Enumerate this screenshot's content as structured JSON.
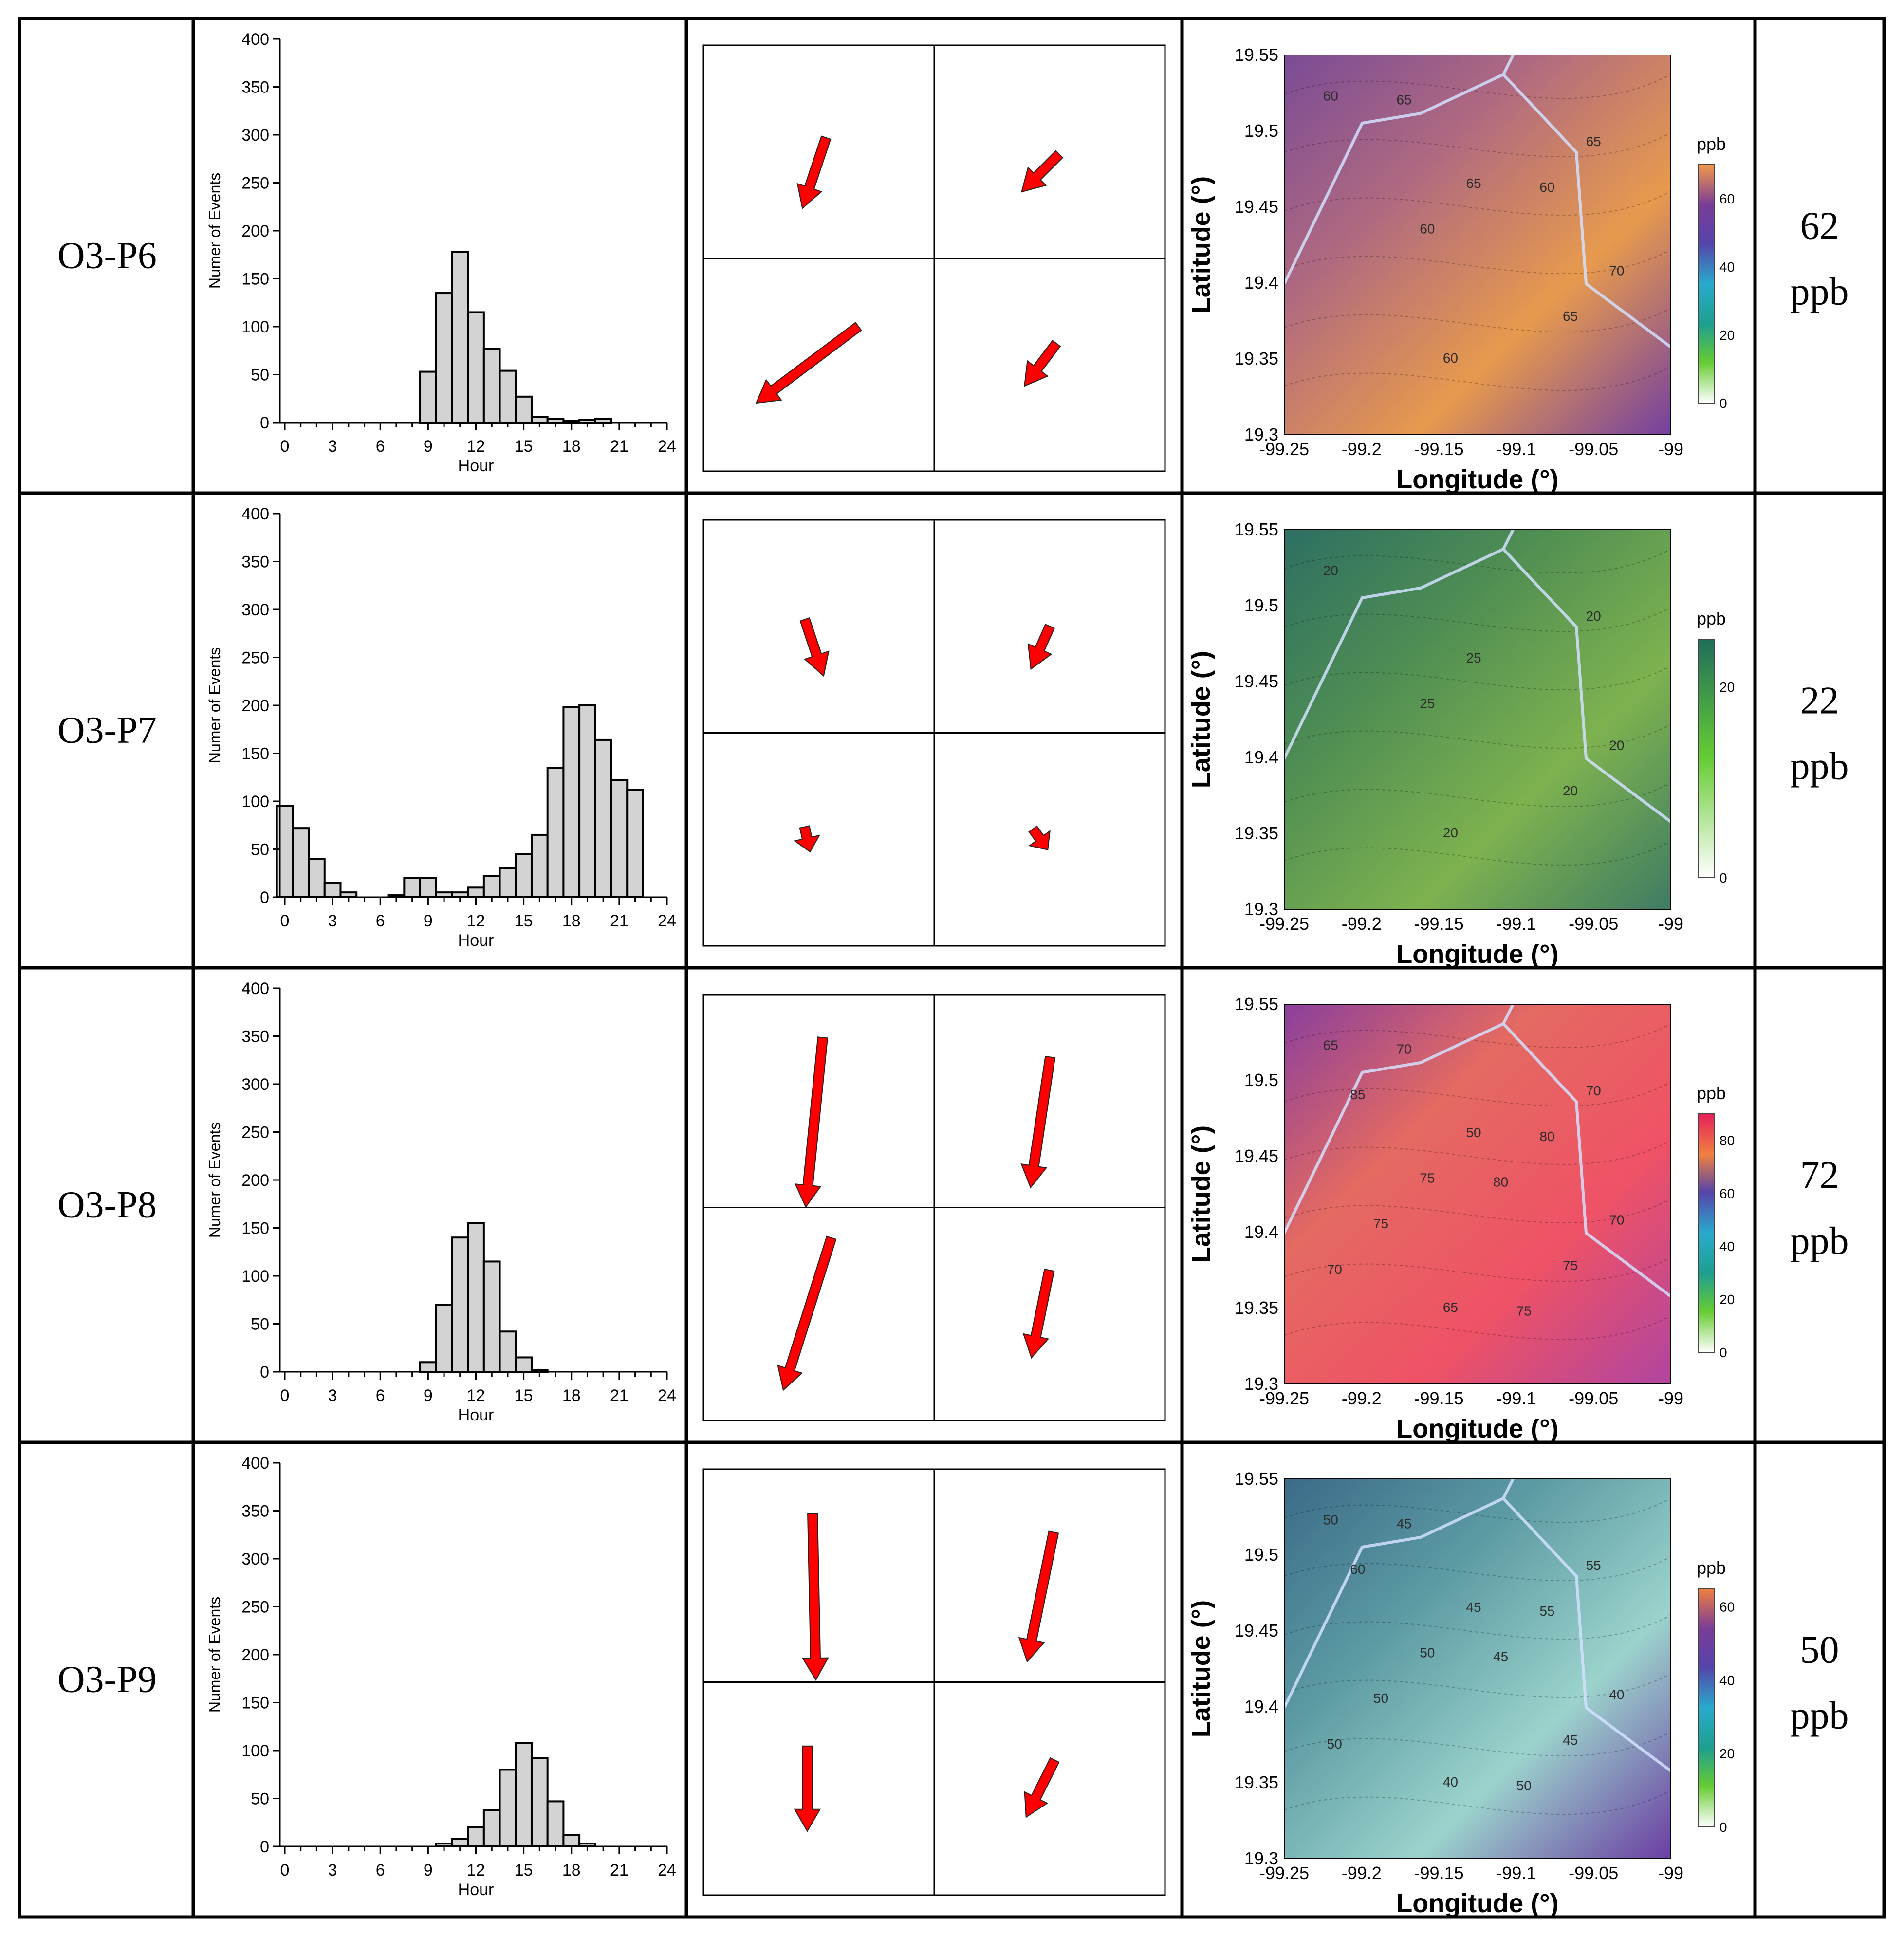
{
  "figure": {
    "type": "table-of-charts",
    "colors": {
      "bar_fill": "#d3d3d3",
      "arrow": "#ff0000",
      "grid": "#000000"
    }
  },
  "histogram_axes": {
    "ylabel": "Numer of Events",
    "xlabel": "Hour",
    "yticks": [
      0,
      50,
      100,
      150,
      200,
      250,
      300,
      350,
      400
    ],
    "xticks": [
      0,
      3,
      6,
      9,
      12,
      15,
      18,
      21,
      24
    ],
    "ylim": [
      0,
      400
    ],
    "xlim": [
      0,
      24
    ]
  },
  "map_axes": {
    "xlabel": "Longitude (°)",
    "ylabel": "Latitude (°)",
    "xticks": [
      "-99.25",
      "-99.2",
      "-99.15",
      "-99.1",
      "-99.05",
      "-99"
    ],
    "yticks": [
      "19.3",
      "19.35",
      "19.4",
      "19.45",
      "19.5",
      "19.55"
    ],
    "xlim": [
      -99.25,
      -99.0
    ],
    "ylim": [
      19.3,
      19.55
    ],
    "legend_title": "ppb"
  },
  "rows": [
    {
      "name": "O3-P6",
      "value": "62",
      "unit": "ppb",
      "histogram": [
        0,
        0,
        0,
        0,
        0,
        0,
        0,
        0,
        0,
        53,
        135,
        178,
        115,
        77,
        54,
        27,
        6,
        4,
        2,
        3,
        4,
        0,
        0,
        0
      ],
      "arrows": [
        {
          "quadrant": "tl",
          "dx": -0.3,
          "dy": 0.9,
          "len": 0.35
        },
        {
          "quadrant": "tr",
          "dx": -0.7,
          "dy": 0.7,
          "len": 0.25
        },
        {
          "quadrant": "bl",
          "dx": -0.8,
          "dy": 0.6,
          "len": 0.6
        },
        {
          "quadrant": "br",
          "dx": -0.6,
          "dy": 0.8,
          "len": 0.25
        }
      ],
      "map": {
        "colorbar": {
          "min": 0,
          "max": 70,
          "ticks": [
            "0",
            "20",
            "40",
            "60"
          ],
          "colors": [
            "#ffffff",
            "#66cc33",
            "#1f9f8f",
            "#29aacc",
            "#5544aa",
            "#7a3c98",
            "#f2994a"
          ]
        },
        "background": [
          "#7a4b96",
          "#b06a80",
          "#e79a4d",
          "#7440a0"
        ],
        "contour_labels": [
          "60",
          "65",
          "70",
          "60",
          "65",
          "60",
          "65",
          "65",
          "60"
        ]
      }
    },
    {
      "name": "O3-P7",
      "value": "22",
      "unit": "ppb",
      "histogram": [
        95,
        72,
        40,
        15,
        5,
        0,
        0,
        2,
        20,
        20,
        5,
        5,
        10,
        22,
        30,
        45,
        65,
        135,
        198,
        200,
        164,
        122,
        112,
        0
      ],
      "arrows": [
        {
          "quadrant": "tl",
          "dx": 0.3,
          "dy": 0.9,
          "len": 0.28
        },
        {
          "quadrant": "tr",
          "dx": -0.4,
          "dy": 0.9,
          "len": 0.22
        },
        {
          "quadrant": "bl",
          "dx": 0.2,
          "dy": 0.9,
          "len": 0.12
        },
        {
          "quadrant": "br",
          "dx": 0.5,
          "dy": 0.7,
          "len": 0.12
        }
      ],
      "map": {
        "colorbar": {
          "min": 0,
          "max": 25,
          "ticks": [
            "0",
            "20"
          ],
          "colors": [
            "#ffffff",
            "#66cc33",
            "#1f6e5a"
          ]
        },
        "background": [
          "#2d6f63",
          "#4f8e53",
          "#7eb24f",
          "#3f7c63"
        ],
        "contour_labels": [
          "20",
          "25",
          "20",
          "20",
          "20",
          "25",
          "20"
        ]
      }
    },
    {
      "name": "O3-P8",
      "value": "72",
      "unit": "ppb",
      "histogram": [
        0,
        0,
        0,
        0,
        0,
        0,
        0,
        0,
        0,
        10,
        70,
        140,
        155,
        115,
        42,
        15,
        2,
        0,
        0,
        0,
        0,
        0,
        0,
        0
      ],
      "arrows": [
        {
          "quadrant": "tl",
          "dx": -0.1,
          "dy": 1.0,
          "len": 0.8
        },
        {
          "quadrant": "tr",
          "dx": -0.15,
          "dy": 1.0,
          "len": 0.62
        },
        {
          "quadrant": "bl",
          "dx": -0.3,
          "dy": 0.95,
          "len": 0.75
        },
        {
          "quadrant": "br",
          "dx": -0.2,
          "dy": 0.98,
          "len": 0.42
        }
      ],
      "map": {
        "colorbar": {
          "min": 0,
          "max": 90,
          "ticks": [
            "0",
            "20",
            "40",
            "60",
            "80"
          ],
          "colors": [
            "#ffffff",
            "#66cc33",
            "#1f9f8f",
            "#29aacc",
            "#5544aa",
            "#f08040",
            "#e6205a"
          ]
        },
        "background": [
          "#8a3f9c",
          "#e46a62",
          "#ef5265",
          "#b045a0"
        ],
        "contour_labels": [
          "65",
          "50",
          "70",
          "65",
          "70",
          "75",
          "75",
          "70",
          "80",
          "75",
          "75",
          "85",
          "80",
          "70"
        ]
      }
    },
    {
      "name": "O3-P9",
      "value": "50",
      "unit": "ppb",
      "histogram": [
        0,
        0,
        0,
        0,
        0,
        0,
        0,
        0,
        0,
        0,
        3,
        8,
        20,
        38,
        80,
        108,
        92,
        47,
        12,
        3,
        0,
        0,
        0,
        0
      ],
      "arrows": [
        {
          "quadrant": "tl",
          "dx": 0.02,
          "dy": 1.0,
          "len": 0.78
        },
        {
          "quadrant": "tr",
          "dx": -0.2,
          "dy": 0.98,
          "len": 0.62
        },
        {
          "quadrant": "bl",
          "dx": 0.0,
          "dy": 1.0,
          "len": 0.4
        },
        {
          "quadrant": "br",
          "dx": -0.45,
          "dy": 0.9,
          "len": 0.3
        }
      ],
      "map": {
        "colorbar": {
          "min": 0,
          "max": 65,
          "ticks": [
            "0",
            "20",
            "40",
            "60"
          ],
          "colors": [
            "#ffffff",
            "#66cc33",
            "#1f9f8f",
            "#29aacc",
            "#5544aa",
            "#7a3c98",
            "#f08040"
          ]
        },
        "background": [
          "#3b6b88",
          "#5c9aa3",
          "#9bd3cc",
          "#6b3ea3"
        ],
        "contour_labels": [
          "50",
          "45",
          "40",
          "40",
          "55",
          "50",
          "45",
          "45",
          "55",
          "50",
          "50",
          "60",
          "45",
          "50"
        ]
      }
    }
  ]
}
